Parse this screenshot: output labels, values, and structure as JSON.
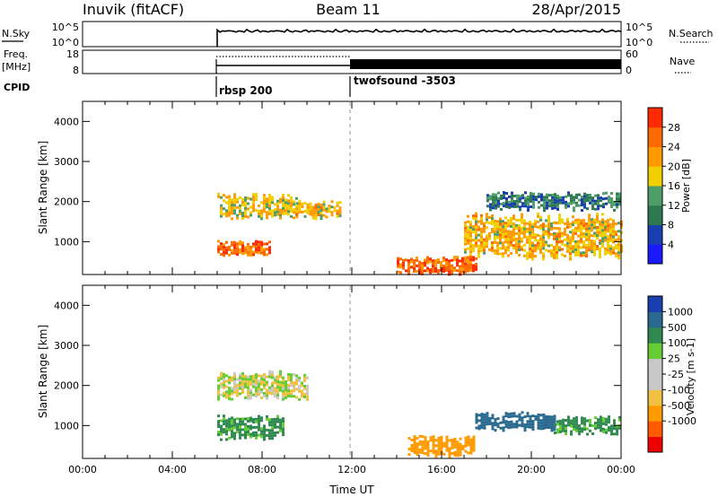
{
  "header": {
    "station": "Inuvik (fitACF)",
    "beam": "Beam 11",
    "date": "28/Apr/2015"
  },
  "status_panels": {
    "nsky_label": "N.Sky",
    "nsearch_label": "N.Search",
    "noise_ticks": [
      "10^5",
      "10^0"
    ],
    "freq_label_line1": "Freq.",
    "freq_label_line2": "[MHz]",
    "freq_ticks": [
      "18",
      "8"
    ],
    "nave_label": "Nave",
    "nave_ticks": [
      "60",
      "0"
    ],
    "cpid_label": "CPID",
    "cpid_segments": [
      {
        "label": "rbsp 200",
        "start_hour": 6
      },
      {
        "label": "twofsound -3503",
        "start_hour": 12
      }
    ]
  },
  "colors": {
    "power_scale": [
      "#1a1aff",
      "#1a3fb0",
      "#2e7a50",
      "#4e9e6a",
      "#f2d000",
      "#ff9a00",
      "#ff6a00",
      "#ff2a00"
    ],
    "velocity_scale": [
      "#ee0000",
      "#ff5a00",
      "#ff9a00",
      "#f0c040",
      "#c8c8c8",
      "#c8c8c8",
      "#66cc33",
      "#2e8a50",
      "#2a6a90",
      "#1a3fb0"
    ]
  },
  "chart_data": [
    {
      "type": "heatmap",
      "title": "",
      "xlabel": "",
      "ylabel": "Slant Range [km]",
      "xlim": [
        "00:00",
        "00:00"
      ],
      "ylim": [
        180,
        4500
      ],
      "yticks": [
        "1000",
        "2000",
        "3000",
        "4000"
      ],
      "colorbar": {
        "label": "Power [dB]",
        "ticks": [
          "4",
          "8",
          "12",
          "16",
          "20",
          "24",
          "28"
        ]
      },
      "echo_regions": [
        {
          "start": "06:00",
          "end": "08:20",
          "range_km": [
            700,
            1000
          ],
          "value_db": 28
        },
        {
          "start": "06:00",
          "end": "09:30",
          "range_km": [
            1650,
            2150
          ],
          "value_db": 20
        },
        {
          "start": "09:30",
          "end": "11:30",
          "range_km": [
            1600,
            2000
          ],
          "value_db": 22
        },
        {
          "start": "14:00",
          "end": "17:30",
          "range_km": [
            250,
            600
          ],
          "value_db": 28
        },
        {
          "start": "17:00",
          "end": "24:00",
          "range_km": [
            700,
            1600
          ],
          "value_db": 22
        },
        {
          "start": "18:00",
          "end": "24:00",
          "range_km": [
            1800,
            2200
          ],
          "value_db": 12
        }
      ]
    },
    {
      "type": "heatmap",
      "title": "",
      "xlabel": "Time UT",
      "ylabel": "Slant Range [km]",
      "xlim": [
        "00:00",
        "00:00"
      ],
      "ylim": [
        180,
        4500
      ],
      "xticks": [
        "00:00",
        "04:00",
        "08:00",
        "12:00",
        "16:00",
        "20:00",
        "00:00"
      ],
      "yticks": [
        "1000",
        "2000",
        "3000",
        "4000"
      ],
      "colorbar": {
        "label": "Velocity [m s-1]",
        "ticks": [
          "1000",
          "500",
          "100",
          "25",
          "-25",
          "-100",
          "-500",
          "-1000"
        ]
      },
      "echo_regions": [
        {
          "start": "06:00",
          "end": "09:00",
          "range_km": [
            700,
            1200
          ],
          "value_ms": 150
        },
        {
          "start": "06:00",
          "end": "10:00",
          "range_km": [
            1700,
            2300
          ],
          "value_ms": 0
        },
        {
          "start": "14:30",
          "end": "17:30",
          "range_km": [
            250,
            700
          ],
          "value_ms": -300
        },
        {
          "start": "17:30",
          "end": "21:00",
          "range_km": [
            900,
            1300
          ],
          "value_ms": 600
        },
        {
          "start": "21:00",
          "end": "24:00",
          "range_km": [
            800,
            1200
          ],
          "value_ms": 150
        }
      ]
    }
  ]
}
